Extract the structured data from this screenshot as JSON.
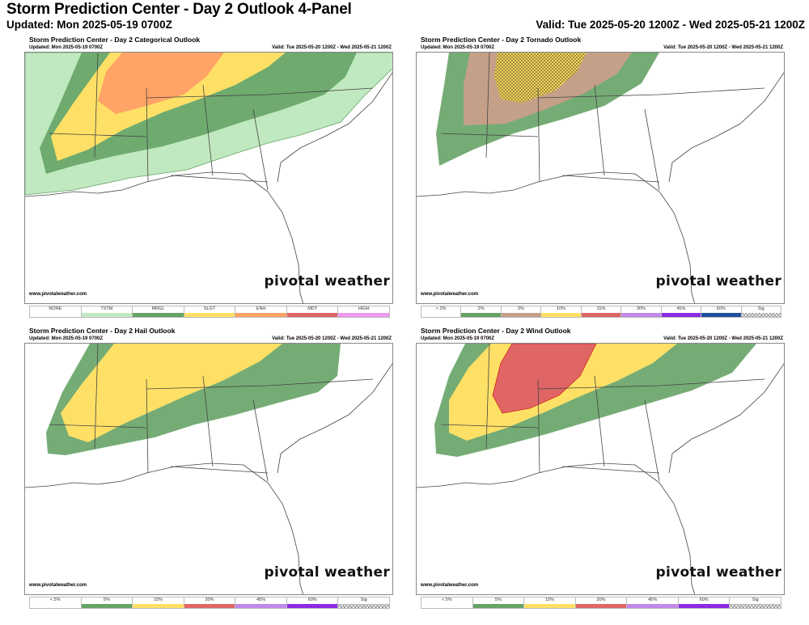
{
  "header": {
    "title": "Storm Prediction Center - Day 2 Outlook 4-Panel",
    "updated": "Updated: Mon 2025-05-19 0700Z",
    "valid": "Valid: Tue 2025-05-20 1200Z - Wed 2025-05-21 1200Z"
  },
  "panels": [
    {
      "title": "Storm Prediction Center - Day 2 Categorical Outlook",
      "updated": "Updated: Mon 2025-05-19 0700Z",
      "valid": "Valid: Tue 2025-05-20 1200Z - Wed 2025-05-21 1200Z",
      "site": "www.pivotalweather.com",
      "brand": "pivotal weather",
      "legend": [
        {
          "label": "NONE",
          "color": "#ffffff"
        },
        {
          "label": "TSTM",
          "color": "#c1e9c1"
        },
        {
          "label": "MRGL",
          "color": "#66a366"
        },
        {
          "label": "SLGT",
          "color": "#ffe066"
        },
        {
          "label": "ENH",
          "color": "#ffa366"
        },
        {
          "label": "MDT",
          "color": "#e06666"
        },
        {
          "label": "HIGH",
          "color": "#ee99ee"
        }
      ]
    },
    {
      "title": "Storm Prediction Center - Day 2 Tornado Outlook",
      "updated": "Updated: Mon 2025-05-19 0700Z",
      "valid": "Valid: Tue 2025-05-20 1200Z - Wed 2025-05-21 1200Z",
      "site": "www.pivotalweather.com",
      "brand": "pivotal weather",
      "legend": [
        {
          "label": "< 2%",
          "color": "#ffffff"
        },
        {
          "label": "2%",
          "color": "#66a366"
        },
        {
          "label": "5%",
          "color": "#c4a089"
        },
        {
          "label": "10%",
          "color": "#ffe066"
        },
        {
          "label": "15%",
          "color": "#e06666"
        },
        {
          "label": "30%",
          "color": "#c08ae8"
        },
        {
          "label": "45%",
          "color": "#8a2be2"
        },
        {
          "label": "60%",
          "color": "#1f4e9a"
        },
        {
          "label": "Sig",
          "color": "hatch"
        }
      ]
    },
    {
      "title": "Storm Prediction Center - Day 2 Hail Outlook",
      "updated": "Updated: Mon 2025-05-19 0700Z",
      "valid": "Valid: Tue 2025-05-20 1200Z - Wed 2025-05-21 1200Z",
      "site": "www.pivotalweather.com",
      "brand": "pivotal weather",
      "legend": [
        {
          "label": "< 5%",
          "color": "#ffffff"
        },
        {
          "label": "5%",
          "color": "#66a366"
        },
        {
          "label": "15%",
          "color": "#ffe066"
        },
        {
          "label": "30%",
          "color": "#e06666"
        },
        {
          "label": "45%",
          "color": "#c08ae8"
        },
        {
          "label": "60%",
          "color": "#8a2be2"
        },
        {
          "label": "Sig",
          "color": "hatch"
        }
      ]
    },
    {
      "title": "Storm Prediction Center - Day 2 Wind Outlook",
      "updated": "Updated: Mon 2025-05-19 0700Z",
      "valid": "Valid: Tue 2025-05-20 1200Z - Wed 2025-05-21 1200Z",
      "site": "www.pivotalweather.com",
      "brand": "pivotal weather",
      "legend": [
        {
          "label": "< 5%",
          "color": "#ffffff"
        },
        {
          "label": "5%",
          "color": "#66a366"
        },
        {
          "label": "15%",
          "color": "#ffe066"
        },
        {
          "label": "30%",
          "color": "#e06666"
        },
        {
          "label": "45%",
          "color": "#c08ae8"
        },
        {
          "label": "60%",
          "color": "#8a2be2"
        },
        {
          "label": "Sig",
          "color": "hatch"
        }
      ]
    }
  ]
}
